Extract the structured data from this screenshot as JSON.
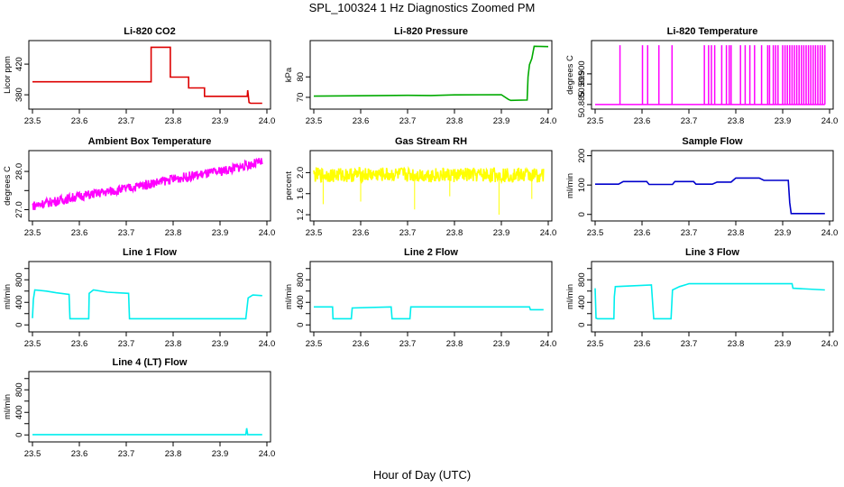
{
  "figure": {
    "title": "SPL_100324  1 Hz Diagnostics Zoomed PM",
    "xlabel": "Hour of Day (UTC)"
  },
  "chart_data": [
    {
      "id": "co2",
      "type": "line",
      "title": "Li-820 CO2",
      "ylabel": "Licor ppm",
      "color": "#dd0000",
      "xlim": [
        23.5,
        24.0
      ],
      "ylim": [
        366,
        446
      ],
      "xticks": [
        23.5,
        23.6,
        23.7,
        23.8,
        23.9,
        24.0
      ],
      "xtick_labels": [
        "23.5",
        "23.6",
        "23.7",
        "23.8",
        "23.9",
        "24.0"
      ],
      "yticks": [
        380,
        420
      ],
      "ytick_labels": [
        "380",
        "420"
      ],
      "series": [
        {
          "name": "CO2",
          "x": [
            23.5,
            23.753,
            23.753,
            23.794,
            23.794,
            23.833,
            23.833,
            23.867,
            23.867,
            23.958,
            23.959,
            23.962,
            23.965,
            23.99
          ],
          "y": [
            397,
            397,
            442,
            442,
            403,
            403,
            389,
            389,
            378,
            378,
            386,
            370,
            369,
            369
          ]
        }
      ]
    },
    {
      "id": "pressure",
      "type": "line",
      "title": "Li-820 Pressure",
      "ylabel": "kPa",
      "color": "#00aa00",
      "xlim": [
        23.5,
        24.0
      ],
      "ylim": [
        66,
        96
      ],
      "xticks": [
        23.5,
        23.6,
        23.7,
        23.8,
        23.9,
        24.0
      ],
      "xtick_labels": [
        "23.5",
        "23.6",
        "23.7",
        "23.8",
        "23.9",
        "24.0"
      ],
      "yticks": [
        70,
        80
      ],
      "ytick_labels": [
        "70",
        "80"
      ],
      "series": [
        {
          "name": "Pressure",
          "x": [
            23.5,
            23.65,
            23.7,
            23.75,
            23.8,
            23.9,
            23.915,
            23.92,
            23.955,
            23.957,
            23.96,
            23.965,
            23.97,
            24.0
          ],
          "y": [
            70.6,
            70.9,
            71.0,
            70.9,
            71.2,
            71.3,
            69.0,
            68.5,
            68.7,
            80.0,
            86.0,
            89.0,
            95.0,
            94.8
          ]
        }
      ]
    },
    {
      "id": "li820temp",
      "type": "line",
      "title": "Li-820 Temperature",
      "ylabel": "degrees C",
      "color": "#ff00ff",
      "xlim": [
        23.5,
        24.0
      ],
      "ylim": [
        50.8845,
        50.9145
      ],
      "xticks": [
        23.5,
        23.6,
        23.7,
        23.8,
        23.9,
        24.0
      ],
      "xtick_labels": [
        "23.5",
        "23.6",
        "23.7",
        "23.8",
        "23.9",
        "24.0"
      ],
      "yticks": [
        50.885,
        50.895,
        50.9
      ],
      "ytick_labels": [
        "50.885",
        "50.895",
        "50.900"
      ],
      "series": [
        {
          "name": "Temperature",
          "baseline": 50.885,
          "spike_value": 50.914,
          "spikes": [
            23.553,
            23.601,
            23.612,
            23.636,
            23.664,
            23.733,
            23.742,
            23.748,
            23.755,
            23.77,
            23.78,
            23.786,
            23.79,
            23.81,
            23.82,
            23.83,
            23.84,
            23.855,
            23.868,
            23.872,
            23.88,
            23.885,
            23.89,
            23.9,
            23.905,
            23.91,
            23.915,
            23.92,
            23.925,
            23.93,
            23.935,
            23.94,
            23.945,
            23.95,
            23.955,
            23.96,
            23.965,
            23.97,
            23.975,
            23.98,
            23.985,
            23.99
          ]
        }
      ]
    },
    {
      "id": "ambient",
      "type": "line",
      "title": "Ambient Box Temperature",
      "ylabel": "degrees C",
      "color": "#ff00ff",
      "xlim": [
        23.5,
        24.0
      ],
      "ylim": [
        26.8,
        28.45
      ],
      "xticks": [
        23.5,
        23.6,
        23.7,
        23.8,
        23.9,
        24.0
      ],
      "xtick_labels": [
        "23.5",
        "23.6",
        "23.7",
        "23.8",
        "23.9",
        "24.0"
      ],
      "yticks": [
        27.0,
        27.5,
        28.0
      ],
      "ytick_labels": [
        "27.0",
        "",
        "28.0"
      ],
      "series": [
        {
          "name": "Ambient",
          "x": [
            23.5,
            23.6,
            23.7,
            23.8,
            23.9,
            23.99
          ],
          "y": [
            27.1,
            27.35,
            27.55,
            27.8,
            28.0,
            28.25
          ],
          "band": 0.25
        }
      ]
    },
    {
      "id": "rh",
      "type": "line",
      "title": "Gas Stream RH",
      "ylabel": "percent",
      "color": "#ffff00",
      "xlim": [
        23.5,
        24.0
      ],
      "ylim": [
        1.15,
        2.35
      ],
      "xticks": [
        23.5,
        23.6,
        23.7,
        23.8,
        23.9,
        24.0
      ],
      "xtick_labels": [
        "23.5",
        "23.6",
        "23.7",
        "23.8",
        "23.9",
        "24.0"
      ],
      "yticks": [
        1.2,
        1.6,
        2.0
      ],
      "ytick_labels": [
        "1.2",
        "1.6",
        "2.0"
      ],
      "series": [
        {
          "name": "RH",
          "x": [
            23.5,
            23.6,
            23.7,
            23.8,
            23.9,
            23.99
          ],
          "y": [
            1.95,
            1.96,
            1.96,
            1.95,
            1.96,
            1.95
          ],
          "band": 0.28,
          "dips_x": [
            23.52,
            23.6,
            23.715,
            23.79,
            23.895,
            23.965
          ],
          "dips_y": [
            1.4,
            1.45,
            1.3,
            1.55,
            1.2,
            1.5
          ]
        }
      ]
    },
    {
      "id": "sampleflow",
      "type": "line",
      "title": "Sample Flow",
      "ylabel": "ml/min",
      "color": "#0000cc",
      "xlim": [
        23.5,
        24.0
      ],
      "ylim": [
        -10,
        205
      ],
      "xticks": [
        23.5,
        23.6,
        23.7,
        23.8,
        23.9,
        24.0
      ],
      "xtick_labels": [
        "23.5",
        "23.6",
        "23.7",
        "23.8",
        "23.9",
        "24.0"
      ],
      "yticks": [
        0,
        100,
        200
      ],
      "ytick_labels": [
        "0",
        "100",
        "200"
      ],
      "series": [
        {
          "name": "Sample",
          "x": [
            23.5,
            23.55,
            23.56,
            23.61,
            23.615,
            23.665,
            23.67,
            23.71,
            23.715,
            23.75,
            23.76,
            23.79,
            23.8,
            23.85,
            23.86,
            23.912,
            23.915,
            23.918,
            23.99
          ],
          "y": [
            103,
            103,
            112,
            112,
            102,
            102,
            112,
            112,
            103,
            103,
            110,
            110,
            124,
            124,
            116,
            116,
            40,
            3,
            3
          ]
        }
      ]
    },
    {
      "id": "line1",
      "type": "line",
      "title": "Line 1 Flow",
      "ylabel": "ml/min",
      "color": "#00eeee",
      "xlim": [
        23.5,
        24.0
      ],
      "ylim": [
        -60,
        1060
      ],
      "xticks": [
        23.5,
        23.6,
        23.7,
        23.8,
        23.9,
        24.0
      ],
      "xtick_labels": [
        "23.5",
        "23.6",
        "23.7",
        "23.8",
        "23.9",
        "24.0"
      ],
      "yticks": [
        0,
        200,
        400,
        600,
        800,
        1000
      ],
      "ytick_labels": [
        "0",
        "",
        "400",
        "",
        "800",
        ""
      ],
      "series": [
        {
          "name": "Line 1",
          "x": [
            23.5,
            23.502,
            23.505,
            23.53,
            23.55,
            23.578,
            23.58,
            23.62,
            23.621,
            23.63,
            23.66,
            23.705,
            23.707,
            23.955,
            23.96,
            23.97,
            23.99
          ],
          "y": [
            120,
            450,
            620,
            600,
            570,
            540,
            110,
            110,
            560,
            620,
            580,
            560,
            110,
            110,
            480,
            530,
            520
          ]
        }
      ]
    },
    {
      "id": "line2",
      "type": "line",
      "title": "Line 2 Flow",
      "ylabel": "ml/min",
      "color": "#00eeee",
      "xlim": [
        23.5,
        24.0
      ],
      "ylim": [
        -60,
        1060
      ],
      "xticks": [
        23.5,
        23.6,
        23.7,
        23.8,
        23.9,
        24.0
      ],
      "xtick_labels": [
        "23.5",
        "23.6",
        "23.7",
        "23.8",
        "23.9",
        "24.0"
      ],
      "yticks": [
        0,
        200,
        400,
        600,
        800,
        1000
      ],
      "ytick_labels": [
        "0",
        "",
        "400",
        "",
        "800",
        ""
      ],
      "series": [
        {
          "name": "Line 2",
          "x": [
            23.5,
            23.54,
            23.541,
            23.58,
            23.582,
            23.665,
            23.667,
            23.705,
            23.707,
            23.96,
            23.962,
            23.99
          ],
          "y": [
            320,
            320,
            110,
            110,
            300,
            320,
            110,
            110,
            320,
            320,
            270,
            270
          ]
        }
      ]
    },
    {
      "id": "line3",
      "type": "line",
      "title": "Line 3 Flow",
      "ylabel": "ml/min",
      "color": "#00eeee",
      "xlim": [
        23.5,
        24.0
      ],
      "ylim": [
        -60,
        1060
      ],
      "xticks": [
        23.5,
        23.6,
        23.7,
        23.8,
        23.9,
        24.0
      ],
      "xtick_labels": [
        "23.5",
        "23.6",
        "23.7",
        "23.8",
        "23.9",
        "24.0"
      ],
      "yticks": [
        0,
        200,
        400,
        600,
        800,
        1000
      ],
      "ytick_labels": [
        "0",
        "",
        "400",
        "",
        "800",
        ""
      ],
      "series": [
        {
          "name": "Line 3",
          "x": [
            23.5,
            23.502,
            23.505,
            23.54,
            23.541,
            23.543,
            23.62,
            23.625,
            23.662,
            23.665,
            23.68,
            23.7,
            23.92,
            23.922,
            23.99
          ],
          "y": [
            650,
            120,
            110,
            110,
            500,
            680,
            710,
            110,
            110,
            620,
            680,
            730,
            730,
            650,
            620
          ]
        }
      ]
    },
    {
      "id": "line4",
      "type": "line",
      "title": "Line 4 (LT) Flow",
      "ylabel": "ml/min",
      "color": "#00eeee",
      "xlim": [
        23.5,
        24.0
      ],
      "ylim": [
        -60,
        1060
      ],
      "xticks": [
        23.5,
        23.6,
        23.7,
        23.8,
        23.9,
        24.0
      ],
      "xtick_labels": [
        "23.5",
        "23.6",
        "23.7",
        "23.8",
        "23.9",
        "24.0"
      ],
      "yticks": [
        0,
        200,
        400,
        600,
        800,
        1000
      ],
      "ytick_labels": [
        "0",
        "",
        "400",
        "",
        "800",
        ""
      ],
      "series": [
        {
          "name": "Line 4",
          "x": [
            23.5,
            23.955,
            23.957,
            23.959,
            23.962,
            23.99
          ],
          "y": [
            5,
            5,
            120,
            5,
            5,
            5
          ]
        }
      ]
    }
  ]
}
